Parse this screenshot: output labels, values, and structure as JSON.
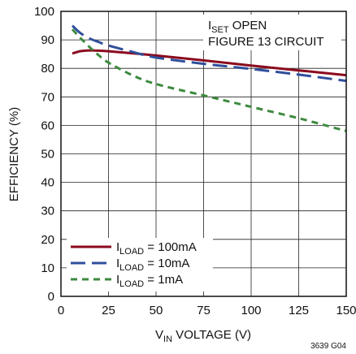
{
  "chart_data": {
    "type": "line",
    "xlabel_main": "V",
    "xlabel_sub": "IN",
    "xlabel_rest": " VOLTAGE (V)",
    "ylabel": "EFFICIENCY (%)",
    "xlim": [
      0,
      150
    ],
    "ylim": [
      0,
      100
    ],
    "x_ticks": [
      0,
      25,
      50,
      75,
      100,
      125,
      150
    ],
    "y_ticks": [
      0,
      10,
      20,
      30,
      40,
      50,
      60,
      70,
      80,
      90,
      100
    ],
    "grid": true,
    "annotation": {
      "line1_main": "I",
      "line1_sub": "SET",
      "line1_rest": " OPEN",
      "line2": "FIGURE 13 CIRCUIT"
    },
    "figure_id": "3639 G04",
    "legend_position": "bottom-left",
    "series": [
      {
        "name_main": "I",
        "name_sub": "LOAD",
        "name_rest": " = 100mA",
        "color": "#8b0a1e",
        "dash": "solid",
        "x": [
          6,
          10,
          15,
          20,
          25,
          37.5,
          50,
          75,
          100,
          125,
          150
        ],
        "y": [
          85.2,
          86.0,
          86.3,
          86.2,
          86.0,
          85.3,
          84.5,
          82.8,
          81.0,
          79.3,
          77.6
        ]
      },
      {
        "name_main": "I",
        "name_sub": "LOAD",
        "name_rest": " = 10mA",
        "color": "#2f4f9c",
        "dash": "long",
        "x": [
          6,
          10,
          15,
          20,
          25,
          37.5,
          50,
          75,
          100,
          125,
          150
        ],
        "y": [
          95.0,
          92.5,
          90.5,
          89.2,
          88.0,
          85.8,
          83.8,
          81.6,
          79.8,
          77.8,
          75.6
        ]
      },
      {
        "name_main": "I",
        "name_sub": "LOAD",
        "name_rest": " = 1mA",
        "color": "#3d8a3f",
        "dash": "short",
        "x": [
          6,
          10,
          15,
          20,
          25,
          37.5,
          50,
          75,
          100,
          125,
          150
        ],
        "y": [
          93.7,
          90.8,
          87.5,
          84.5,
          82.0,
          77.6,
          74.5,
          70.5,
          66.5,
          62.5,
          58.0
        ]
      }
    ]
  }
}
